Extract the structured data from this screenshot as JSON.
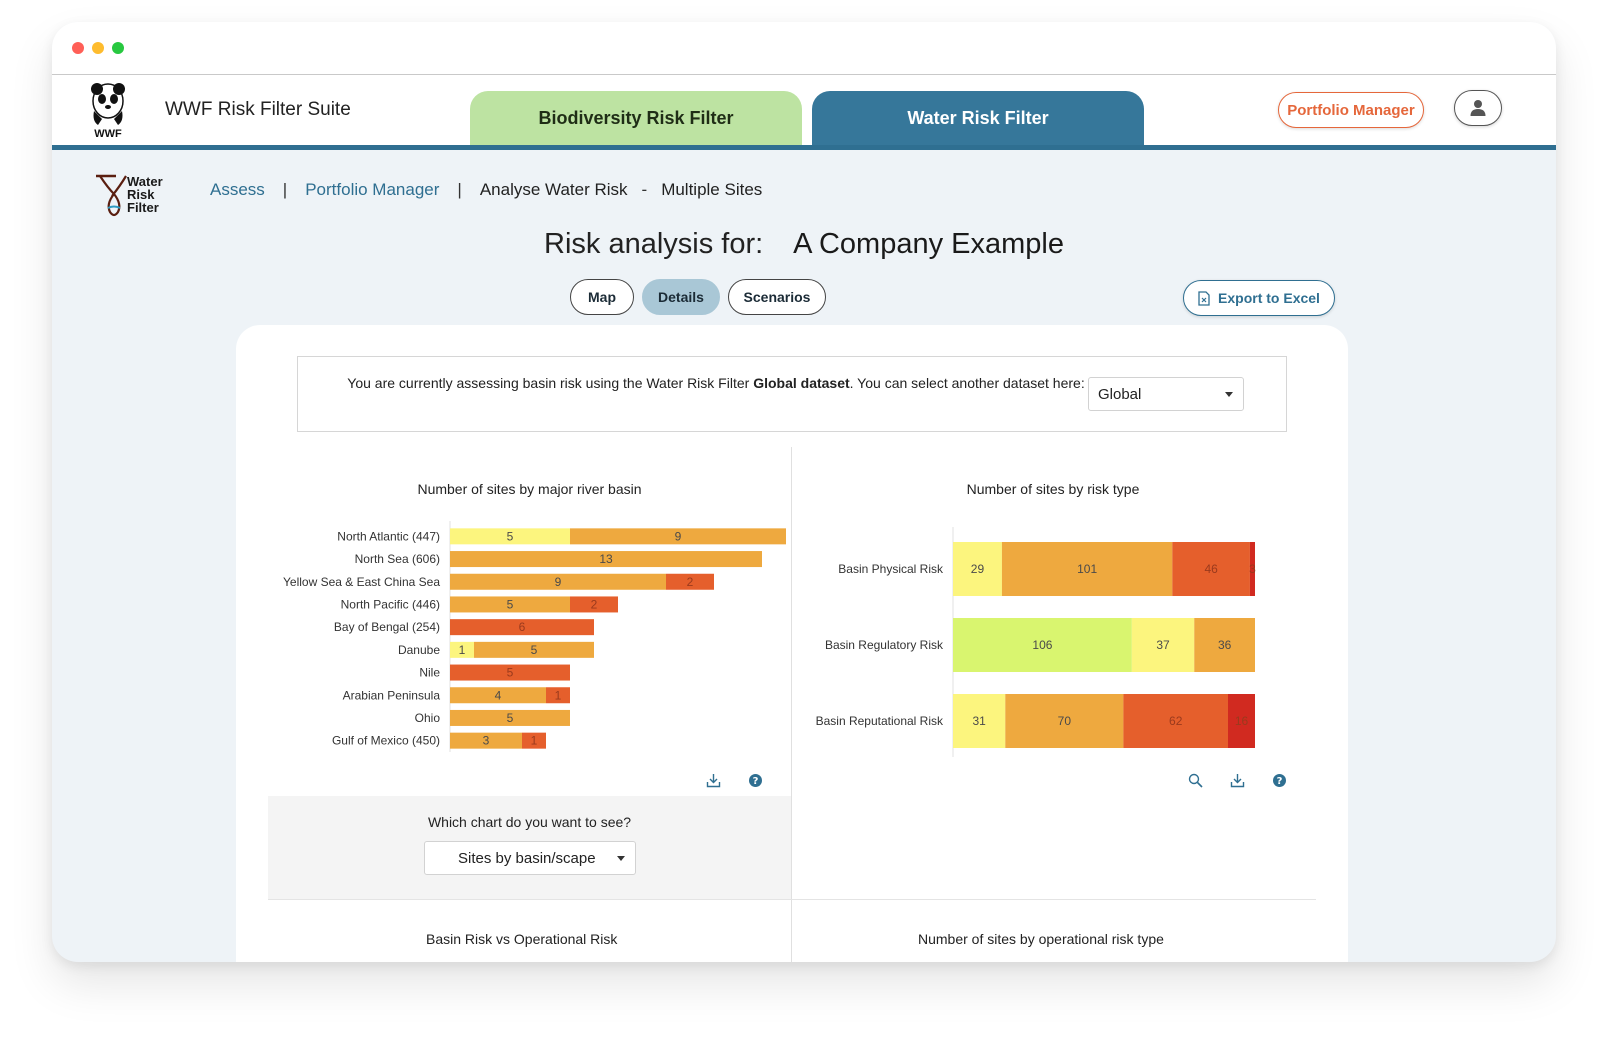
{
  "app": {
    "suite_title": "WWF Risk Filter Suite",
    "wwf_logo_text": "WWF",
    "tabs": [
      {
        "label": "Biodiversity Risk Filter"
      },
      {
        "label": "Water Risk Filter"
      }
    ],
    "portfolio_manager_label": "Portfolio Manager",
    "user_icon": "user-icon"
  },
  "product_logo": {
    "lines": [
      "Water",
      "Risk",
      "Filter"
    ]
  },
  "breadcrumb": {
    "assess": "Assess",
    "sep": "|",
    "portfolio_manager": "Portfolio Manager",
    "analyse": "Analyse Water Risk",
    "dash": "-",
    "multiple": "Multiple Sites"
  },
  "page": {
    "title_prefix": "Risk analysis for:",
    "company": "A Company Example"
  },
  "view_tabs": [
    {
      "label": "Map",
      "active": false
    },
    {
      "label": "Details",
      "active": true
    },
    {
      "label": "Scenarios",
      "active": false
    }
  ],
  "export": {
    "label": "Export to Excel",
    "icon": "excel-file-icon"
  },
  "dataset": {
    "text_before": "You are currently assessing basin risk using the Water Risk Filter ",
    "text_bold": "Global dataset",
    "text_after": ". You can select another dataset here:",
    "selected": "Global"
  },
  "chooser": {
    "label": "Which chart do you want to see?",
    "selected": "Sites by basin/scape"
  },
  "icons": {
    "left": [
      "download-icon",
      "help-icon"
    ],
    "right": [
      "zoom-icon",
      "download-icon",
      "help-icon"
    ]
  },
  "colors": {
    "very_low": "#d9f56f",
    "low": "#fcf57e",
    "medium": "#eea93f",
    "high": "#e55f2c",
    "very_high": "#d12a20",
    "accent": "#2f6f91"
  },
  "chart_data": [
    {
      "type": "bar",
      "orientation": "horizontal",
      "stacked": true,
      "title": "Number of sites by major river basin",
      "categories": [
        "North Atlantic (447)",
        "North Sea (606)",
        "Yellow Sea & East China Sea",
        "North Pacific (446)",
        "Bay of Bengal (254)",
        "Danube",
        "Nile",
        "Arabian Peninsula",
        "Ohio",
        "Gulf of Mexico (450)"
      ],
      "series": [
        {
          "color": "#fcf57e",
          "values": [
            5,
            0,
            0,
            0,
            0,
            1,
            0,
            0,
            0,
            0
          ]
        },
        {
          "color": "#eea93f",
          "values": [
            9,
            13,
            9,
            5,
            0,
            5,
            0,
            4,
            5,
            3
          ]
        },
        {
          "color": "#e55f2c",
          "values": [
            0,
            0,
            2,
            2,
            6,
            0,
            5,
            1,
            0,
            1
          ]
        }
      ],
      "xlim": [
        0,
        14
      ]
    },
    {
      "type": "bar",
      "orientation": "horizontal",
      "stacked": true,
      "title": "Number of sites by risk type",
      "categories": [
        "Basin Physical Risk",
        "Basin Regulatory Risk",
        "Basin Reputational Risk"
      ],
      "series": [
        {
          "color": "#d9f56f",
          "values": [
            0,
            106,
            0
          ]
        },
        {
          "color": "#fcf57e",
          "values": [
            29,
            37,
            31
          ]
        },
        {
          "color": "#eea93f",
          "values": [
            101,
            36,
            70
          ]
        },
        {
          "color": "#e55f2c",
          "values": [
            46,
            0,
            62
          ]
        },
        {
          "color": "#d12a20",
          "values": [
            3,
            0,
            16
          ]
        }
      ],
      "xlim": [
        0,
        179
      ]
    }
  ],
  "cut_titles": [
    "Basin Risk vs Operational Risk",
    "Number of sites by operational risk type"
  ]
}
